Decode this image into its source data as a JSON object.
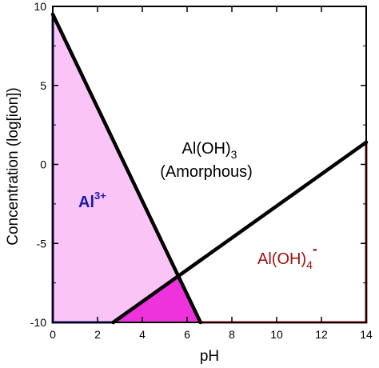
{
  "chart_data": {
    "type": "line",
    "xlabel": "pH",
    "ylabel": "Concentration (log[ion])",
    "xlim": [
      0,
      14
    ],
    "ylim": [
      -10,
      10
    ],
    "x_ticks": [
      "0",
      "2",
      "4",
      "6",
      "8",
      "10",
      "12",
      "14"
    ],
    "y_ticks": [
      "10",
      "5",
      "0",
      "-5",
      "-10"
    ],
    "grid": false,
    "series": [
      {
        "name": "Al3+",
        "x": [
          0,
          6.6
        ],
        "y": [
          9.5,
          -10
        ]
      },
      {
        "name": "Al(OH)4-",
        "x": [
          2.7,
          14
        ],
        "y": [
          -10,
          1.4
        ]
      }
    ],
    "intersection": {
      "x": 5.7,
      "y": -7.1
    },
    "regions": [
      {
        "label": "Al(OH)3 (Amorphous)",
        "fill": "#ffffff"
      },
      {
        "label": "Al3+",
        "fill": "#fbc4f7",
        "text_color": "#1a1aa6"
      },
      {
        "label": "Al(OH)4-",
        "fill": "#ffffff",
        "text_color": "#a01010"
      },
      {
        "label": "overlap",
        "fill": "#ee33dd"
      }
    ],
    "annotations": {
      "amorphous_line1": "Al(OH)",
      "amorphous_sub": "3",
      "amorphous_line2": "(Amorphous)",
      "al3_main": "Al",
      "al3_sup": "3+",
      "aloh4_main": "Al(OH)",
      "aloh4_sub": "4",
      "aloh4_sup": "-"
    },
    "colors": {
      "boundary": "#000000",
      "al3_fill": "#fbc4f7",
      "overlap_fill": "#ee33dd",
      "al3_edge": "#1a1aa6",
      "aloh4_edge": "#c01818"
    }
  }
}
